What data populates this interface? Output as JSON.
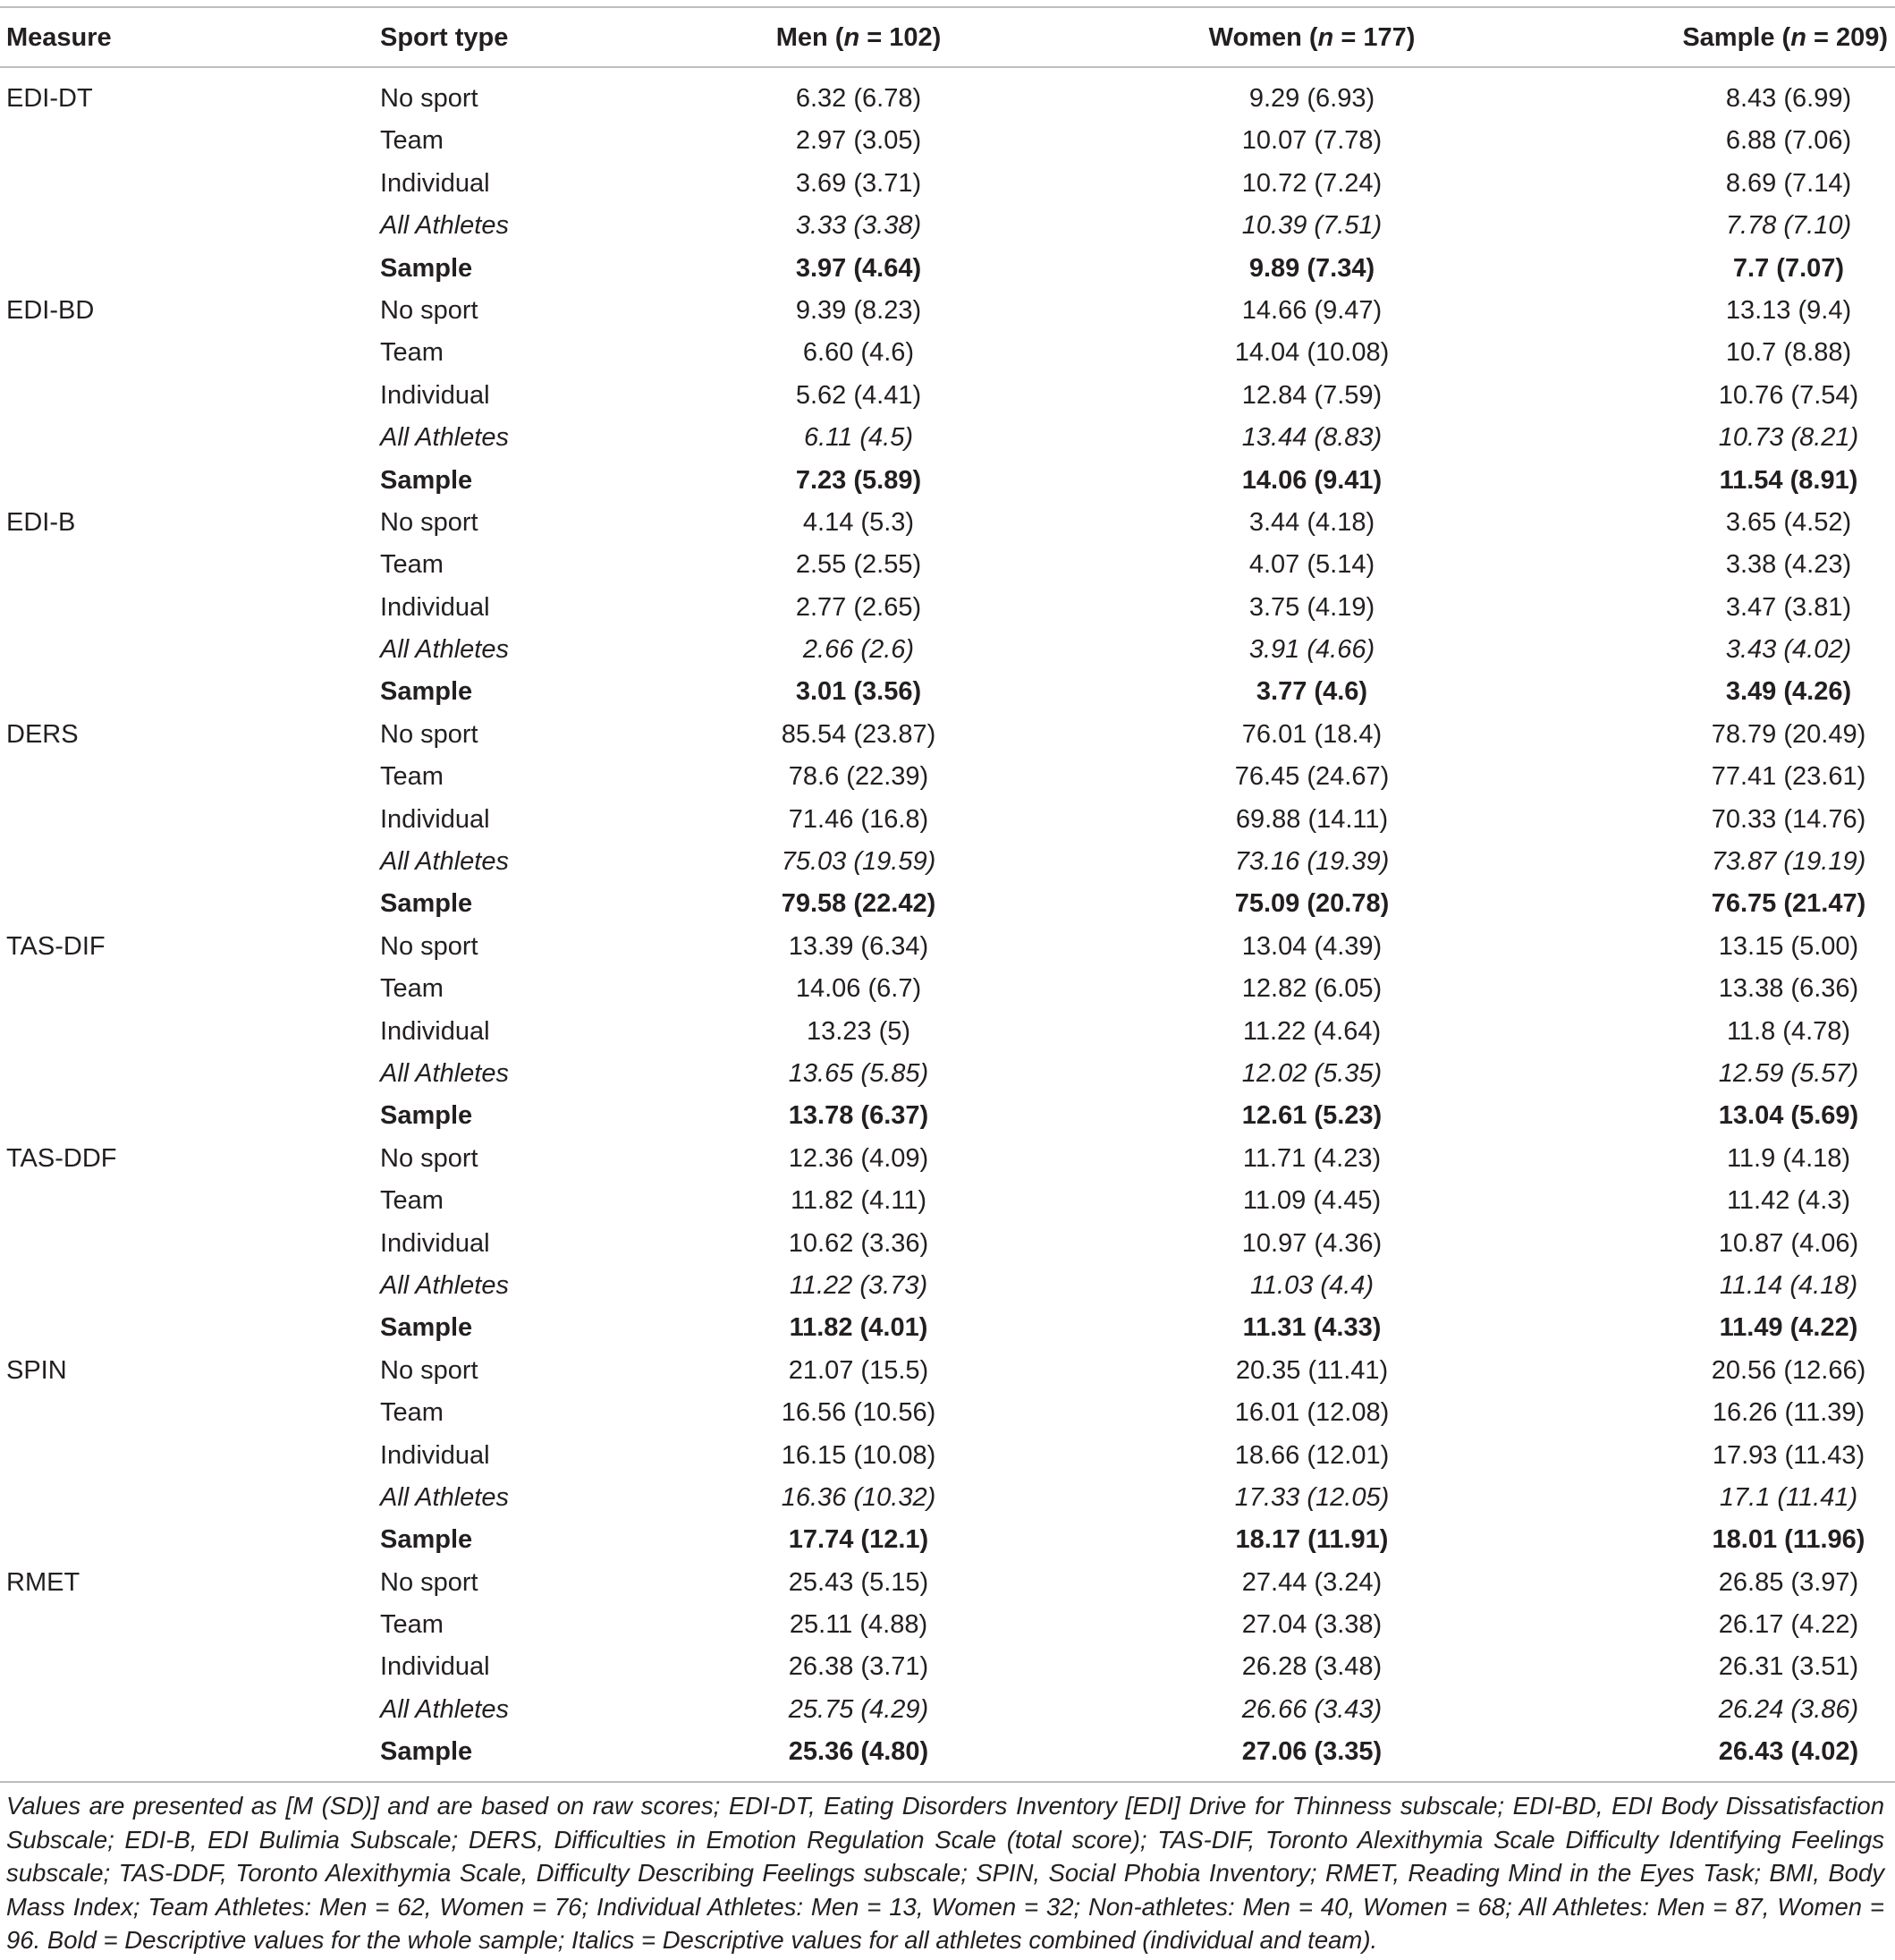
{
  "table": {
    "headers": {
      "measure": "Measure",
      "sport_type": "Sport type",
      "men_prefix": "Men (",
      "men_n": "n",
      "men_suffix": " = 102)",
      "women_prefix": "Women (",
      "women_n": "n",
      "women_suffix": " = 177)",
      "sample_prefix": "Sample (",
      "sample_n": "n",
      "sample_suffix": " = 209)"
    },
    "rows": [
      {
        "measure": "EDI-DT",
        "sport": "No sport",
        "men": "6.32 (6.78)",
        "women": "9.29 (6.93)",
        "sample": "8.43 (6.99)",
        "style": "normal"
      },
      {
        "measure": "",
        "sport": "Team",
        "men": "2.97 (3.05)",
        "women": "10.07 (7.78)",
        "sample": "6.88 (7.06)",
        "style": "normal"
      },
      {
        "measure": "",
        "sport": "Individual",
        "men": "3.69 (3.71)",
        "women": "10.72 (7.24)",
        "sample": "8.69 (7.14)",
        "style": "normal"
      },
      {
        "measure": "",
        "sport": "All Athletes",
        "men": "3.33 (3.38)",
        "women": "10.39 (7.51)",
        "sample": "7.78 (7.10)",
        "style": "italic"
      },
      {
        "measure": "",
        "sport": "Sample",
        "men": "3.97 (4.64)",
        "women": "9.89 (7.34)",
        "sample": "7.7 (7.07)",
        "style": "bold"
      },
      {
        "measure": "EDI-BD",
        "sport": "No sport",
        "men": "9.39 (8.23)",
        "women": "14.66 (9.47)",
        "sample": "13.13 (9.4)",
        "style": "normal"
      },
      {
        "measure": "",
        "sport": "Team",
        "men": "6.60 (4.6)",
        "women": "14.04 (10.08)",
        "sample": "10.7 (8.88)",
        "style": "normal"
      },
      {
        "measure": "",
        "sport": "Individual",
        "men": "5.62 (4.41)",
        "women": "12.84 (7.59)",
        "sample": "10.76 (7.54)",
        "style": "normal"
      },
      {
        "measure": "",
        "sport": "All Athletes",
        "men": "6.11 (4.5)",
        "women": "13.44 (8.83)",
        "sample": "10.73 (8.21)",
        "style": "italic"
      },
      {
        "measure": "",
        "sport": "Sample",
        "men": "7.23 (5.89)",
        "women": "14.06 (9.41)",
        "sample": "11.54 (8.91)",
        "style": "bold"
      },
      {
        "measure": "EDI-B",
        "sport": "No sport",
        "men": "4.14 (5.3)",
        "women": "3.44 (4.18)",
        "sample": "3.65 (4.52)",
        "style": "normal"
      },
      {
        "measure": "",
        "sport": "Team",
        "men": "2.55 (2.55)",
        "women": "4.07 (5.14)",
        "sample": "3.38 (4.23)",
        "style": "normal"
      },
      {
        "measure": "",
        "sport": "Individual",
        "men": "2.77 (2.65)",
        "women": "3.75 (4.19)",
        "sample": "3.47 (3.81)",
        "style": "normal"
      },
      {
        "measure": "",
        "sport": "All Athletes",
        "men": "2.66 (2.6)",
        "women": "3.91 (4.66)",
        "sample": "3.43 (4.02)",
        "style": "italic"
      },
      {
        "measure": "",
        "sport": "Sample",
        "men": "3.01 (3.56)",
        "women": "3.77 (4.6)",
        "sample": "3.49 (4.26)",
        "style": "bold"
      },
      {
        "measure": "DERS",
        "sport": "No sport",
        "men": "85.54 (23.87)",
        "women": "76.01 (18.4)",
        "sample": "78.79 (20.49)",
        "style": "normal"
      },
      {
        "measure": "",
        "sport": "Team",
        "men": "78.6 (22.39)",
        "women": "76.45 (24.67)",
        "sample": "77.41 (23.61)",
        "style": "normal"
      },
      {
        "measure": "",
        "sport": "Individual",
        "men": "71.46 (16.8)",
        "women": "69.88 (14.11)",
        "sample": "70.33 (14.76)",
        "style": "normal"
      },
      {
        "measure": "",
        "sport": "All Athletes",
        "men": "75.03 (19.59)",
        "women": "73.16 (19.39)",
        "sample": "73.87 (19.19)",
        "style": "italic"
      },
      {
        "measure": "",
        "sport": "Sample",
        "men": "79.58 (22.42)",
        "women": "75.09 (20.78)",
        "sample": "76.75 (21.47)",
        "style": "bold"
      },
      {
        "measure": "TAS-DIF",
        "sport": "No sport",
        "men": "13.39 (6.34)",
        "women": "13.04 (4.39)",
        "sample": "13.15 (5.00)",
        "style": "normal"
      },
      {
        "measure": "",
        "sport": "Team",
        "men": "14.06 (6.7)",
        "women": "12.82 (6.05)",
        "sample": "13.38 (6.36)",
        "style": "normal"
      },
      {
        "measure": "",
        "sport": "Individual",
        "men": "13.23 (5)",
        "women": "11.22 (4.64)",
        "sample": "11.8 (4.78)",
        "style": "normal"
      },
      {
        "measure": "",
        "sport": "All Athletes",
        "men": "13.65 (5.85)",
        "women": "12.02 (5.35)",
        "sample": "12.59 (5.57)",
        "style": "italic"
      },
      {
        "measure": "",
        "sport": "Sample",
        "men": "13.78 (6.37)",
        "women": "12.61 (5.23)",
        "sample": "13.04 (5.69)",
        "style": "bold"
      },
      {
        "measure": "TAS-DDF",
        "sport": "No sport",
        "men": "12.36 (4.09)",
        "women": "11.71 (4.23)",
        "sample": "11.9 (4.18)",
        "style": "normal"
      },
      {
        "measure": "",
        "sport": "Team",
        "men": "11.82 (4.11)",
        "women": "11.09 (4.45)",
        "sample": "11.42 (4.3)",
        "style": "normal"
      },
      {
        "measure": "",
        "sport": "Individual",
        "men": "10.62 (3.36)",
        "women": "10.97 (4.36)",
        "sample": "10.87 (4.06)",
        "style": "normal"
      },
      {
        "measure": "",
        "sport": "All Athletes",
        "men": "11.22 (3.73)",
        "women": "11.03 (4.4)",
        "sample": "11.14 (4.18)",
        "style": "italic"
      },
      {
        "measure": "",
        "sport": "Sample",
        "men": "11.82 (4.01)",
        "women": "11.31 (4.33)",
        "sample": "11.49 (4.22)",
        "style": "bold"
      },
      {
        "measure": "SPIN",
        "sport": "No sport",
        "men": "21.07 (15.5)",
        "women": "20.35 (11.41)",
        "sample": "20.56 (12.66)",
        "style": "normal"
      },
      {
        "measure": "",
        "sport": "Team",
        "men": "16.56 (10.56)",
        "women": "16.01 (12.08)",
        "sample": "16.26 (11.39)",
        "style": "normal"
      },
      {
        "measure": "",
        "sport": "Individual",
        "men": "16.15 (10.08)",
        "women": "18.66 (12.01)",
        "sample": "17.93 (11.43)",
        "style": "normal"
      },
      {
        "measure": "",
        "sport": "All Athletes",
        "men": "16.36 (10.32)",
        "women": "17.33 (12.05)",
        "sample": "17.1 (11.41)",
        "style": "italic"
      },
      {
        "measure": "",
        "sport": "Sample",
        "men": "17.74 (12.1)",
        "women": "18.17 (11.91)",
        "sample": "18.01 (11.96)",
        "style": "bold"
      },
      {
        "measure": "RMET",
        "sport": "No sport",
        "men": "25.43 (5.15)",
        "women": "27.44 (3.24)",
        "sample": "26.85 (3.97)",
        "style": "normal"
      },
      {
        "measure": "",
        "sport": "Team",
        "men": "25.11 (4.88)",
        "women": "27.04 (3.38)",
        "sample": "26.17 (4.22)",
        "style": "normal"
      },
      {
        "measure": "",
        "sport": "Individual",
        "men": "26.38 (3.71)",
        "women": "26.28 (3.48)",
        "sample": "26.31 (3.51)",
        "style": "normal"
      },
      {
        "measure": "",
        "sport": "All Athletes",
        "men": "25.75 (4.29)",
        "women": "26.66 (3.43)",
        "sample": "26.24 (3.86)",
        "style": "italic"
      },
      {
        "measure": "",
        "sport": "Sample",
        "men": "25.36 (4.80)",
        "women": "27.06 (3.35)",
        "sample": "26.43 (4.02)",
        "style": "bold"
      }
    ]
  },
  "footnote": "Values are presented as [M (SD)] and are based on raw scores; EDI-DT, Eating Disorders Inventory [EDI] Drive for Thinness subscale; EDI-BD, EDI Body Dissatisfaction Subscale; EDI-B, EDI Bulimia Subscale; DERS, Difficulties in Emotion Regulation Scale (total score); TAS-DIF, Toronto Alexithymia Scale Difficulty Identifying Feelings subscale; TAS-DDF, Toronto Alexithymia Scale, Difficulty Describing Feelings subscale; SPIN, Social Phobia Inventory; RMET, Reading Mind in the Eyes Task; BMI, Body Mass Index; Team Athletes: Men = 62, Women = 76; Individual Athletes: Men = 13, Women = 32; Non-athletes: Men = 40, Women = 68; All Athletes: Men = 87, Women = 96. Bold = Descriptive values for the whole sample; Italics = Descriptive values for all athletes combined (individual and team)."
}
